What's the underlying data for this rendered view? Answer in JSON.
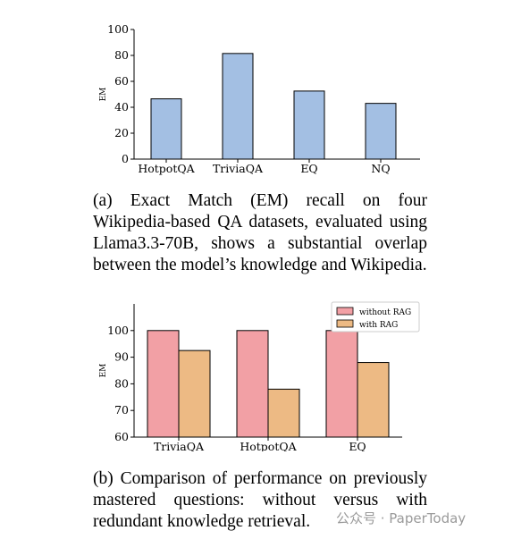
{
  "chart_data": [
    {
      "type": "bar",
      "categories": [
        "HotpotQA",
        "TriviaQA",
        "EQ",
        "NQ"
      ],
      "values": [
        46.5,
        81.5,
        52.5,
        43
      ],
      "ylabel": "EM",
      "ylim": [
        0,
        100
      ],
      "yticks": [
        0,
        20,
        40,
        60,
        80,
        100
      ],
      "grid": false,
      "colors": [
        "#a3bfe3"
      ]
    },
    {
      "type": "bar",
      "categories": [
        "TriviaQA",
        "HotpotQA",
        "EQ"
      ],
      "series": [
        {
          "name": "without RAG",
          "values": [
            100,
            100,
            100
          ],
          "color": "#f2a0a5"
        },
        {
          "name": "with RAG",
          "values": [
            92.5,
            78,
            88
          ],
          "color": "#edba84"
        }
      ],
      "ylabel": "EM",
      "ylim": [
        60,
        110
      ],
      "yticks": [
        60,
        70,
        80,
        90,
        100
      ],
      "legend": "top-right",
      "grid": false
    }
  ],
  "captions": {
    "a": "(a) Exact Match (EM) recall on four Wikipedia-based QA datasets, evaluated using Llama3.3-70B, shows a substantial overlap between the model’s knowledge and Wikipedia.",
    "b": "(b) Comparison of performance on previously mastered questions: without versus with redundant knowledge retrieval."
  },
  "watermark": "公众号 · PaperToday"
}
